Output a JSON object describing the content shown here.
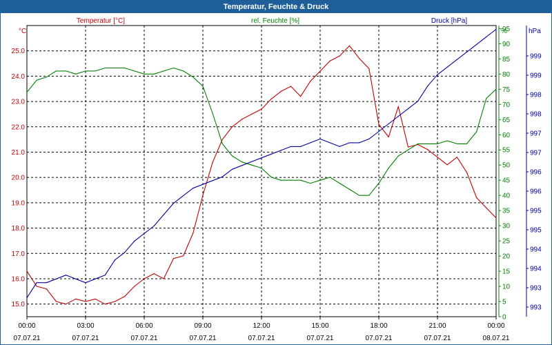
{
  "chart_data": {
    "type": "line",
    "title": "Temperatur, Feuchte & Druck",
    "x": [
      "00:00",
      "00:30",
      "01:00",
      "01:30",
      "02:00",
      "02:30",
      "03:00",
      "03:30",
      "04:00",
      "04:30",
      "05:00",
      "05:30",
      "06:00",
      "06:30",
      "07:00",
      "07:30",
      "08:00",
      "08:30",
      "09:00",
      "09:30",
      "10:00",
      "10:30",
      "11:00",
      "11:30",
      "12:00",
      "12:30",
      "13:00",
      "13:30",
      "14:00",
      "14:30",
      "15:00",
      "15:30",
      "16:00",
      "16:30",
      "17:00",
      "17:30",
      "18:00",
      "18:30",
      "19:00",
      "19:30",
      "20:00",
      "20:30",
      "21:00",
      "21:30",
      "22:00",
      "22:30",
      "23:00",
      "23:30",
      "24:00"
    ],
    "x_ticks": [
      {
        "time": "00:00",
        "date": "07.07.21"
      },
      {
        "time": "03:00",
        "date": "07.07.21"
      },
      {
        "time": "06:00",
        "date": "07.07.21"
      },
      {
        "time": "09:00",
        "date": "07.07.21"
      },
      {
        "time": "12:00",
        "date": "07.07.21"
      },
      {
        "time": "15:00",
        "date": "07.07.21"
      },
      {
        "time": "18:00",
        "date": "07.07.21"
      },
      {
        "time": "21:00",
        "date": "07.07.21"
      },
      {
        "time": "00:00",
        "date": "08.07.21"
      }
    ],
    "axes": {
      "left": {
        "label": "Temperatur [°C]",
        "unit": "°C",
        "range": [
          14.5,
          26.0
        ],
        "ticks": [
          "15.0",
          "16.0",
          "17.0",
          "18.0",
          "19.0",
          "20.0",
          "21.0",
          "22.0",
          "23.0",
          "24.0",
          "25.0"
        ],
        "color": "#c00000"
      },
      "right1": {
        "label": "rel. Feuchte [%]",
        "unit": "%",
        "range": [
          0,
          96
        ],
        "ticks": [
          "0",
          "5",
          "10",
          "15",
          "20",
          "25",
          "30",
          "35",
          "40",
          "45",
          "50",
          "55",
          "60",
          "65",
          "70",
          "75",
          "80",
          "85",
          "90",
          "95"
        ],
        "color": "#008000"
      },
      "right2": {
        "label": "Druck [hPa]",
        "unit": "hPa",
        "range": [
          992.5,
          1000.2
        ],
        "ticks": [
          "993",
          "993",
          "994",
          "994",
          "995",
          "995",
          "996",
          "996",
          "997",
          "997",
          "998",
          "998",
          "999",
          "999"
        ],
        "color": "#0000a0"
      }
    },
    "grid": true,
    "series": [
      {
        "name": "Temperatur [°C]",
        "axis": "left",
        "color": "#c00000",
        "values": [
          16.3,
          15.7,
          15.6,
          15.1,
          15.0,
          15.2,
          15.1,
          15.2,
          15.0,
          15.1,
          15.3,
          15.7,
          16.0,
          16.2,
          16.0,
          16.8,
          16.9,
          17.8,
          19.3,
          20.6,
          21.5,
          22.0,
          22.3,
          22.5,
          22.7,
          23.1,
          23.4,
          23.6,
          23.2,
          23.8,
          24.2,
          24.6,
          24.8,
          25.2,
          24.7,
          24.3,
          22.1,
          21.6,
          22.8,
          21.2,
          21.3,
          21.1,
          20.8,
          20.5,
          20.8,
          20.2,
          19.2,
          18.8,
          18.4
        ]
      },
      {
        "name": "rel. Feuchte [%]",
        "axis": "right1",
        "color": "#008000",
        "values": [
          74,
          78,
          79,
          81,
          81,
          80,
          81,
          81,
          82,
          82,
          82,
          81,
          80,
          80,
          81,
          82,
          81,
          79,
          76,
          67,
          57,
          53,
          51,
          50,
          49,
          46,
          45,
          45,
          45,
          44,
          45,
          46,
          44,
          42,
          40,
          40,
          44,
          49,
          53,
          55,
          57,
          57,
          57,
          58,
          57,
          57,
          61,
          72,
          75
        ]
      },
      {
        "name": "Druck [hPa]",
        "axis": "right2",
        "color": "#0000a0",
        "values": [
          993.0,
          993.4,
          993.4,
          993.5,
          993.6,
          993.5,
          993.4,
          993.5,
          993.6,
          994.0,
          994.2,
          994.5,
          994.7,
          994.9,
          995.2,
          995.5,
          995.7,
          995.9,
          996.0,
          996.1,
          996.2,
          996.4,
          996.5,
          996.6,
          996.7,
          996.8,
          996.9,
          997.0,
          997.0,
          997.1,
          997.2,
          997.1,
          997.0,
          997.1,
          997.1,
          997.2,
          997.4,
          997.6,
          997.8,
          998.0,
          998.2,
          998.6,
          998.9,
          999.1,
          999.3,
          999.5,
          999.7,
          999.9,
          1000.1
        ]
      }
    ]
  }
}
